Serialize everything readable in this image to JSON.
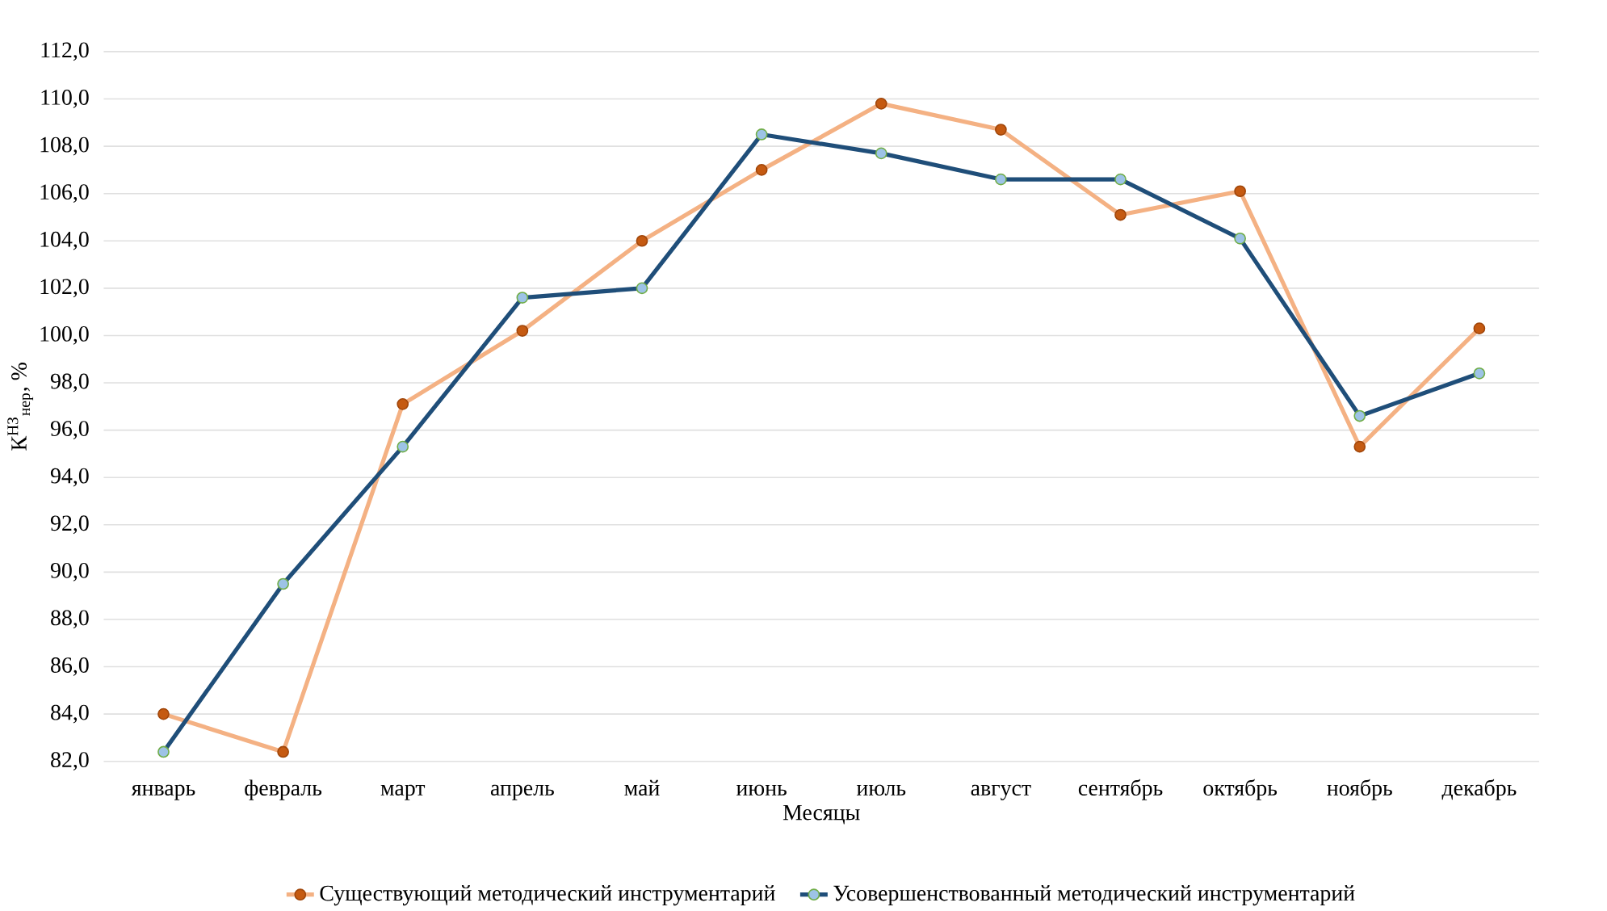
{
  "chart_data": {
    "type": "line",
    "xlabel": "Месяцы",
    "ylabel": "К$^{НЗ}$$_{нер}$, %",
    "categories": [
      "январь",
      "февраль",
      "март",
      "апрель",
      "май",
      "июнь",
      "июль",
      "август",
      "сентябрь",
      "октябрь",
      "ноябрь",
      "декабрь"
    ],
    "series": [
      {
        "name": "Существующий методический инструментарий",
        "color": "#f4b183",
        "values": [
          84.0,
          82.4,
          97.1,
          100.2,
          104.0,
          107.0,
          109.8,
          108.7,
          105.1,
          106.1,
          95.3,
          100.3
        ]
      },
      {
        "name": "Усовершенствованный методический инструментарий",
        "color": "#1f4e79",
        "values": [
          82.4,
          89.5,
          95.3,
          101.6,
          102.0,
          108.5,
          107.7,
          106.6,
          106.6,
          104.1,
          96.6,
          98.4
        ]
      }
    ],
    "ylim": [
      82,
      112
    ],
    "yticks": [
      {
        "value": 82,
        "label": "82,0"
      },
      {
        "value": 84,
        "label": "84,0"
      },
      {
        "value": 86,
        "label": "86,0"
      },
      {
        "value": 88,
        "label": "88,0"
      },
      {
        "value": 90,
        "label": "90,0"
      },
      {
        "value": 92,
        "label": "92,0"
      },
      {
        "value": 94,
        "label": "94,0"
      },
      {
        "value": 96,
        "label": "96,0"
      },
      {
        "value": 98,
        "label": "98,0"
      },
      {
        "value": 100,
        "label": "100,0"
      },
      {
        "value": 102,
        "label": "102,0"
      },
      {
        "value": 104,
        "label": "104,0"
      },
      {
        "value": 106,
        "label": "106,0"
      },
      {
        "value": 108,
        "label": "108,0"
      },
      {
        "value": 110,
        "label": "110,0"
      },
      {
        "value": 112,
        "label": "112,0"
      }
    ],
    "grid": "y",
    "legend": "bottom",
    "marker": "circle",
    "line_style": "solid"
  }
}
